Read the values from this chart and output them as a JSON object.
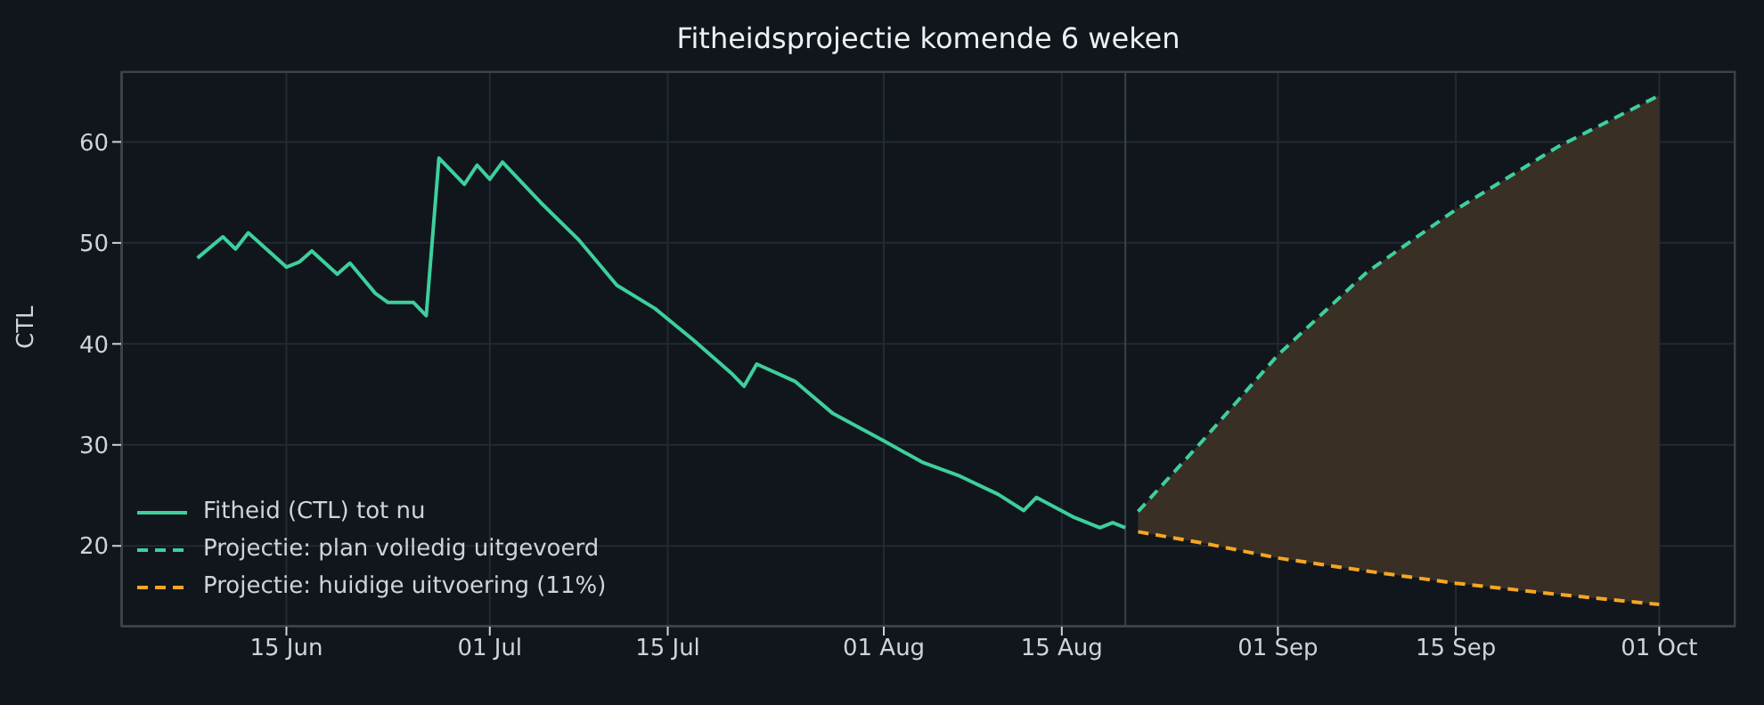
{
  "chart_data": {
    "type": "line",
    "title": "Fitheidsprojectie komende 6 weken",
    "ylabel": "CTL",
    "xlim": [
      "--06-02",
      "--10-07"
    ],
    "xticks": [
      {
        "value": "--06-15",
        "label": "15 Jun"
      },
      {
        "value": "--07-01",
        "label": "01 Jul"
      },
      {
        "value": "--07-15",
        "label": "15 Jul"
      },
      {
        "value": "--08-01",
        "label": "01 Aug"
      },
      {
        "value": "--08-15",
        "label": "15 Aug"
      },
      {
        "value": "--09-01",
        "label": "01 Sep"
      },
      {
        "value": "--09-15",
        "label": "15 Sep"
      },
      {
        "value": "--10-01",
        "label": "01 Oct"
      }
    ],
    "ylim": [
      12,
      67
    ],
    "yticks": [
      20,
      30,
      40,
      50,
      60
    ],
    "grid": true,
    "legend": "bottom left",
    "marker": "none",
    "ref_lines": [
      {
        "axis": "x",
        "value": "--08-20",
        "color": "#3a414c"
      }
    ],
    "series": [
      {
        "name": "Fitheid (CTL) tot nu",
        "color": "#3ecf9c",
        "line_style": "solid",
        "x": [
          "--06-08",
          "--06-10",
          "--06-11",
          "--06-12",
          "--06-15",
          "--06-16",
          "--06-17",
          "--06-19",
          "--06-20",
          "--06-22",
          "--06-23",
          "--06-25",
          "--06-26",
          "--06-27",
          "--06-29",
          "--06-30",
          "--07-01",
          "--07-02",
          "--07-05",
          "--07-08",
          "--07-11",
          "--07-14",
          "--07-17",
          "--07-20",
          "--07-21",
          "--07-22",
          "--07-25",
          "--07-28",
          "--08-01",
          "--08-04",
          "--08-07",
          "--08-10",
          "--08-12",
          "--08-13",
          "--08-16",
          "--08-18",
          "--08-19",
          "--08-20"
        ],
        "values": [
          48.5,
          50.6,
          49.4,
          51.0,
          47.6,
          48.1,
          49.2,
          46.9,
          48.0,
          45.0,
          44.1,
          44.1,
          42.8,
          58.4,
          55.8,
          57.7,
          56.3,
          58.0,
          54.0,
          50.3,
          45.8,
          43.5,
          40.4,
          37.1,
          35.8,
          38.0,
          36.3,
          33.1,
          30.4,
          28.3,
          26.9,
          25.1,
          23.5,
          24.8,
          22.8,
          21.8,
          22.3,
          21.8
        ]
      },
      {
        "name": "Projectie: plan volledig uitgevoerd",
        "color": "#3ecf9c",
        "line_style": "dashed",
        "x": [
          "--08-21",
          "--08-26",
          "--09-01",
          "--09-08",
          "--09-15",
          "--09-23",
          "--10-01"
        ],
        "values": [
          23.4,
          30.3,
          38.9,
          47.1,
          53.3,
          59.5,
          64.6
        ],
        "lower": [
          21.4,
          20.3,
          18.8,
          17.5,
          16.3,
          15.2,
          14.2
        ],
        "upper": [
          23.4,
          30.3,
          38.9,
          47.1,
          53.3,
          59.5,
          64.6
        ]
      },
      {
        "name": "Projectie: huidige uitvoering (11%)",
        "color": "#f5a623",
        "line_style": "dashed",
        "x": [
          "--08-21",
          "--08-26",
          "--09-01",
          "--09-08",
          "--09-15",
          "--09-23",
          "--10-01"
        ],
        "values": [
          21.4,
          20.3,
          18.8,
          17.5,
          16.3,
          15.2,
          14.2
        ]
      }
    ]
  }
}
